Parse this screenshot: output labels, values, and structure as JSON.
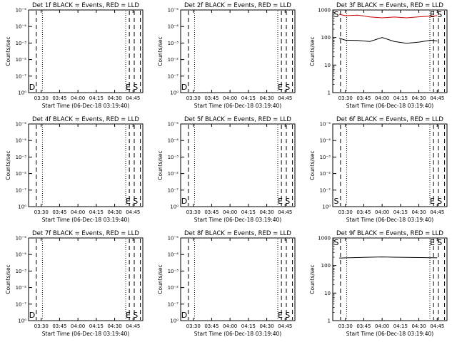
{
  "figure": {
    "colors": {
      "background": "#ffffff",
      "events": "#000000",
      "lld": "#cc0000"
    },
    "panels": [
      {
        "title": "Det 1f BLACK = Events, RED = LLD",
        "ylabel": "Counts/sec",
        "xlabel": "Start Time (06-Dec-18 03:19:40)",
        "scale": "none",
        "ytick_labels": [
          "10⁰",
          "10⁻⁷",
          "10⁻²",
          "10⁻³",
          "10⁻⁴",
          "10⁻⁵"
        ],
        "flags": [
          "D",
          "E",
          "S"
        ]
      },
      {
        "title": "Det 2f BLACK = Events, RED = LLD",
        "ylabel": "Counts/sec",
        "xlabel": "Start Time (06-Dec-18 03:19:40)",
        "scale": "none",
        "ytick_labels": [
          "10⁰",
          "10⁻⁷",
          "10⁻²",
          "10⁻³",
          "10⁻⁴",
          "10⁻⁵"
        ],
        "flags": [
          "D",
          "E",
          "S"
        ]
      },
      {
        "title": "Det 3f BLACK = Events, RED = LLD",
        "ylabel": "Counts/sec",
        "xlabel": "Start Time (06-Dec-18 03:19:40)",
        "scale": "log",
        "ytick_labels": [
          "1",
          "10",
          "100",
          "1000"
        ],
        "flags": [
          "S",
          "E",
          "S"
        ]
      },
      {
        "title": "Det 4f BLACK = Events, RED = LLD",
        "ylabel": "Counts/sec",
        "xlabel": "Start Time (06-Dec-18 03:19:40)",
        "scale": "none",
        "ytick_labels": [
          "10⁰",
          "10⁻⁷",
          "10⁻²",
          "10⁻³",
          "10⁻⁴",
          "10⁻⁵"
        ],
        "flags": [
          "E",
          "S"
        ]
      },
      {
        "title": "Det 5f BLACK = Events, RED = LLD",
        "ylabel": "Counts/sec",
        "xlabel": "Start Time (06-Dec-18 03:19:40)",
        "scale": "none",
        "ytick_labels": [
          "10⁰",
          "10⁻⁷",
          "10⁻²",
          "10⁻³",
          "10⁻⁴",
          "10⁻⁵"
        ],
        "flags": [
          "D",
          "E",
          "S"
        ]
      },
      {
        "title": "Det 6f BLACK = Events, RED = LLD",
        "ylabel": "Counts/sec",
        "xlabel": "Start Time (06-Dec-18 03:19:40)",
        "scale": "none",
        "ytick_labels": [
          "10⁰",
          "10⁻⁷",
          "10⁻²",
          "10⁻³",
          "10⁻⁴",
          "10⁻⁵"
        ],
        "flags": [
          "S",
          "E",
          "S"
        ]
      },
      {
        "title": "Det 7f BLACK = Events, RED = LLD",
        "ylabel": "Counts/sec",
        "xlabel": "Start Time (06-Dec-18 03:19:40)",
        "scale": "none",
        "ytick_labels": [
          "10⁰",
          "10⁻⁷",
          "10⁻²",
          "10⁻³",
          "10⁻⁴",
          "10⁻⁵"
        ],
        "flags": [
          "D",
          "E",
          "S"
        ]
      },
      {
        "title": "Det 8f BLACK = Events, RED = LLD",
        "ylabel": "Counts/sec",
        "xlabel": "Start Time (06-Dec-18 03:19:40)",
        "scale": "none",
        "ytick_labels": [
          "10⁰",
          "10⁻⁷",
          "10⁻²",
          "10⁻³",
          "10⁻⁴",
          "10⁻⁵"
        ],
        "flags": [
          "D",
          "E",
          "S"
        ]
      },
      {
        "title": "Det 9f BLACK = Events, RED = LLD",
        "ylabel": "Counts/sec",
        "xlabel": "Start Time (06-Dec-18 03:19:40)",
        "scale": "log",
        "ytick_labels": [
          "1",
          "10",
          "100",
          "1000"
        ],
        "flags": [
          "S",
          "E",
          "S"
        ]
      }
    ]
  },
  "chart_data": [
    {
      "type": "line",
      "title": "Det 1f BLACK = Events, RED = LLD",
      "xlabel": "Start Time (06-Dec-18 03:19:40)",
      "ylabel": "Counts/sec",
      "x_tick_labels": [
        "03:30",
        "03:45",
        "04:00",
        "04:15",
        "04:30",
        "04:45"
      ],
      "y_tick_labels": [
        "10⁰",
        "10⁻⁷",
        "10⁻²",
        "10⁻³",
        "10⁻⁴",
        "10⁻⁵"
      ],
      "series": []
    },
    {
      "type": "line",
      "title": "Det 2f BLACK = Events, RED = LLD",
      "xlabel": "Start Time (06-Dec-18 03:19:40)",
      "ylabel": "Counts/sec",
      "x_tick_labels": [
        "03:30",
        "03:45",
        "04:00",
        "04:15",
        "04:30",
        "04:45"
      ],
      "y_tick_labels": [
        "10⁰",
        "10⁻⁷",
        "10⁻²",
        "10⁻³",
        "10⁻⁴",
        "10⁻⁵"
      ],
      "series": []
    },
    {
      "type": "line",
      "title": "Det 3f BLACK = Events, RED = LLD",
      "xlabel": "Start Time (06-Dec-18 03:19:40)",
      "ylabel": "Counts/sec",
      "x_tick_labels": [
        "03:30",
        "03:45",
        "04:00",
        "04:15",
        "04:30",
        "04:45"
      ],
      "y_tick_labels": [
        "1",
        "10",
        "100",
        "1000"
      ],
      "yscale": "log",
      "ylim": [
        1,
        1000
      ],
      "series": [
        {
          "color": "#cc0000",
          "x": [
            "03:25",
            "03:30",
            "03:40",
            "03:50",
            "04:00",
            "04:10",
            "04:20",
            "04:30",
            "04:40",
            "04:45"
          ],
          "y": [
            700,
            620,
            650,
            560,
            520,
            555,
            520,
            565,
            600,
            620
          ]
        },
        {
          "color": "#000000",
          "x": [
            "03:25",
            "03:30",
            "03:40",
            "03:50",
            "04:00",
            "04:10",
            "04:20",
            "04:30",
            "04:40",
            "04:45"
          ],
          "y": [
            95,
            80,
            78,
            72,
            100,
            72,
            62,
            68,
            80,
            75
          ]
        }
      ]
    },
    {
      "type": "line",
      "title": "Det 4f BLACK = Events, RED = LLD",
      "xlabel": "Start Time (06-Dec-18 03:19:40)",
      "ylabel": "Counts/sec",
      "x_tick_labels": [
        "03:30",
        "03:45",
        "04:00",
        "04:15",
        "04:30",
        "04:45"
      ],
      "y_tick_labels": [
        "10⁰",
        "10⁻⁷",
        "10⁻²",
        "10⁻³",
        "10⁻⁴",
        "10⁻⁵"
      ],
      "series": []
    },
    {
      "type": "line",
      "title": "Det 5f BLACK = Events, RED = LLD",
      "xlabel": "Start Time (06-Dec-18 03:19:40)",
      "ylabel": "Counts/sec",
      "x_tick_labels": [
        "03:30",
        "03:45",
        "04:00",
        "04:15",
        "04:30",
        "04:45"
      ],
      "y_tick_labels": [
        "10⁰",
        "10⁻⁷",
        "10⁻²",
        "10⁻³",
        "10⁻⁴",
        "10⁻⁵"
      ],
      "series": []
    },
    {
      "type": "line",
      "title": "Det 6f BLACK = Events, RED = LLD",
      "xlabel": "Start Time (06-Dec-18 03:19:40)",
      "ylabel": "Counts/sec",
      "x_tick_labels": [
        "03:30",
        "03:45",
        "04:00",
        "04:15",
        "04:30",
        "04:45"
      ],
      "y_tick_labels": [
        "10⁰",
        "10⁻⁷",
        "10⁻²",
        "10⁻³",
        "10⁻⁴",
        "10⁻⁵"
      ],
      "series": []
    },
    {
      "type": "line",
      "title": "Det 7f BLACK = Events, RED = LLD",
      "xlabel": "Start Time (06-Dec-18 03:19:40)",
      "ylabel": "Counts/sec",
      "x_tick_labels": [
        "03:30",
        "03:45",
        "04:00",
        "04:15",
        "04:30",
        "04:45"
      ],
      "y_tick_labels": [
        "10⁰",
        "10⁻⁷",
        "10⁻²",
        "10⁻³",
        "10⁻⁴",
        "10⁻⁵"
      ],
      "series": []
    },
    {
      "type": "line",
      "title": "Det 8f BLACK = Events, RED = LLD",
      "xlabel": "Start Time (06-Dec-18 03:19:40)",
      "ylabel": "Counts/sec",
      "x_tick_labels": [
        "03:30",
        "03:45",
        "04:00",
        "04:15",
        "04:30",
        "04:45"
      ],
      "y_tick_labels": [
        "10⁰",
        "10⁻⁷",
        "10⁻²",
        "10⁻³",
        "10⁻⁴",
        "10⁻⁵"
      ],
      "series": []
    },
    {
      "type": "line",
      "title": "Det 9f BLACK = Events, RED = LLD",
      "xlabel": "Start Time (06-Dec-18 03:19:40)",
      "ylabel": "Counts/sec",
      "x_tick_labels": [
        "03:30",
        "03:45",
        "04:00",
        "04:15",
        "04:30",
        "04:45"
      ],
      "y_tick_labels": [
        "1",
        "10",
        "100",
        "1000"
      ],
      "yscale": "log",
      "ylim": [
        1,
        1000
      ],
      "series": [
        {
          "color": "#000000",
          "x": [
            "03:25",
            "03:30",
            "03:40",
            "03:50",
            "04:00",
            "04:10",
            "04:20",
            "04:30",
            "04:40",
            "04:45"
          ],
          "y": [
            185,
            190,
            195,
            200,
            205,
            200,
            198,
            195,
            192,
            190
          ]
        }
      ]
    }
  ]
}
